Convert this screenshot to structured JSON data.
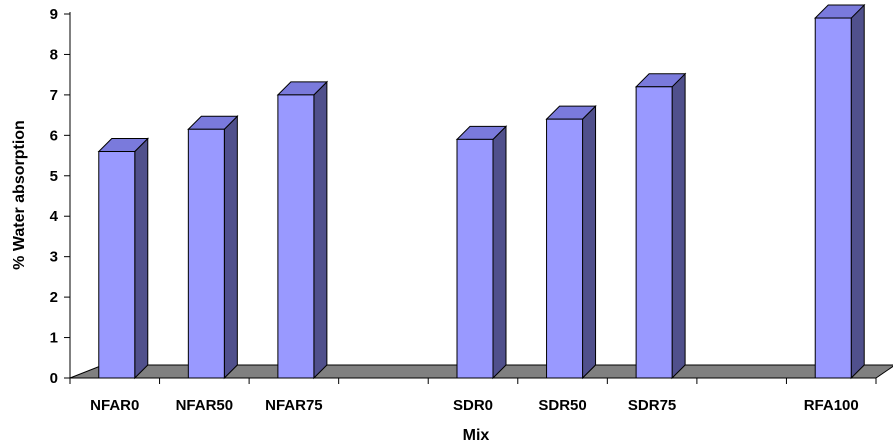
{
  "chart_data": {
    "type": "bar",
    "style": "3d-column",
    "categories": [
      "NFAR0",
      "NFAR50",
      "NFAR75",
      "",
      "SDR0",
      "SDR50",
      "SDR75",
      "",
      "RFA100"
    ],
    "values": [
      5.6,
      6.15,
      7.0,
      null,
      5.9,
      6.4,
      7.2,
      null,
      8.9
    ],
    "xlabel": "Mix",
    "ylabel": "% Water absorption",
    "ylim": [
      0,
      9
    ],
    "yticks": [
      0,
      1,
      2,
      3,
      4,
      5,
      6,
      7,
      8,
      9
    ],
    "grid": false,
    "legend": "none",
    "colors": {
      "bar_front": "#9999FF",
      "bar_side": "#50508C",
      "bar_top": "#7A7ADC",
      "bar_outline": "#000000",
      "floor": "#808080",
      "axis": "#000000"
    }
  }
}
